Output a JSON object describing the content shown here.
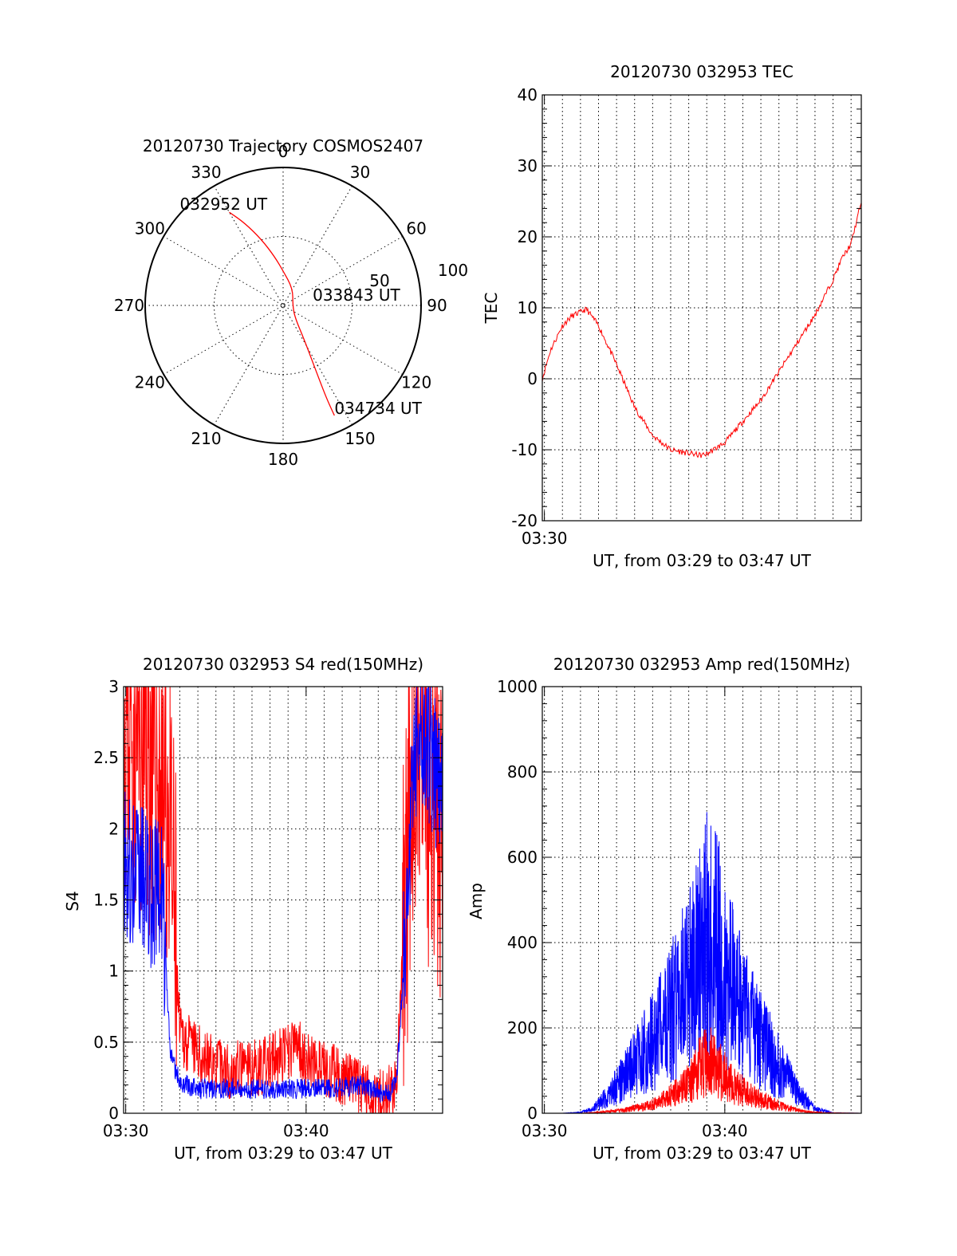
{
  "colors": {
    "red": "#ff0000",
    "blue": "#0000ff",
    "axis": "#000000"
  },
  "chart_data": [
    {
      "type": "polar",
      "id": "trajectory",
      "title": "20120730 Trajectory COSMOS2407",
      "azimuth_labels": [
        "0",
        "30",
        "60",
        "90",
        "120",
        "150",
        "180",
        "210",
        "240",
        "270",
        "300",
        "330"
      ],
      "radial_labels": [
        "50",
        "100"
      ],
      "rlim": [
        0,
        100
      ],
      "grid": true,
      "series": [
        {
          "color": "red",
          "points": [
            [
              330,
              78
            ],
            [
              335,
              66
            ],
            [
              342,
              50
            ],
            [
              350,
              36
            ],
            [
              0,
              25
            ],
            [
              30,
              14
            ],
            [
              90,
              7
            ],
            [
              135,
              12
            ],
            [
              148,
              28
            ],
            [
              152,
              44
            ],
            [
              154,
              60
            ],
            [
              155,
              76
            ],
            [
              155,
              88
            ]
          ]
        }
      ],
      "annotations": [
        {
          "text": "032952 UT",
          "az": 330,
          "r": 78
        },
        {
          "text": "033843 UT",
          "az": 90,
          "r": 7
        },
        {
          "text": "034734 UT",
          "az": 155,
          "r": 88
        }
      ]
    },
    {
      "type": "line",
      "id": "tec",
      "title": "20120730 032953 TEC",
      "ylabel": "TEC",
      "xlabel": "UT, from 03:29 to 03:47 UT",
      "xlim": [
        "03:29:53",
        "03:47:34"
      ],
      "ylim": [
        -20,
        40
      ],
      "yticks": [
        -20,
        -10,
        0,
        10,
        20,
        30,
        40
      ],
      "xtick_labels": [
        "03:30"
      ],
      "grid": true,
      "series": [
        {
          "color": "red",
          "x": [
            "03:29:53",
            "03:30:20",
            "03:31:00",
            "03:31:30",
            "03:32:05",
            "03:32:20",
            "03:33:00",
            "03:34:00",
            "03:35:00",
            "03:36:00",
            "03:37:00",
            "03:38:00",
            "03:38:40",
            "03:39:00",
            "03:39:30",
            "03:40:00",
            "03:41:00",
            "03:42:00",
            "03:43:00",
            "03:44:00",
            "03:45:00",
            "03:45:30",
            "03:46:00",
            "03:46:30",
            "03:47:00",
            "03:47:34"
          ],
          "y": [
            0,
            4,
            7.5,
            8.8,
            9.5,
            9.8,
            7.5,
            2,
            -4,
            -8,
            -10,
            -10.5,
            -10.8,
            -10.6,
            -9.8,
            -9,
            -6,
            -3,
            1,
            5,
            9,
            11.5,
            14,
            17,
            19,
            25
          ]
        }
      ]
    },
    {
      "type": "line",
      "id": "s4",
      "title": "20120730 032953 S4 red(150MHz)",
      "ylabel": "S4",
      "xlabel": "UT, from 03:29 to 03:47 UT",
      "xlim": [
        "03:29:53",
        "03:47:34"
      ],
      "ylim": [
        0,
        3
      ],
      "yticks": [
        0,
        0.5,
        1,
        1.5,
        2,
        2.5,
        3
      ],
      "ytick_labels": [
        "0",
        "0.5",
        "1",
        "1.5",
        "2",
        "2.5",
        "3"
      ],
      "xtick_labels": [
        "03:30",
        "03:40"
      ],
      "grid": true,
      "series": [
        {
          "color": "red",
          "x": [
            "03:29:53",
            "03:31:00",
            "03:32:20",
            "03:33:00",
            "03:34:00",
            "03:35:00",
            "03:36:00",
            "03:37:00",
            "03:38:00",
            "03:39:00",
            "03:39:30",
            "03:40:00",
            "03:41:00",
            "03:42:00",
            "03:43:00",
            "03:44:00",
            "03:44:30",
            "03:45:00",
            "03:45:30",
            "03:46:00",
            "03:46:30",
            "03:47:00",
            "03:47:34"
          ],
          "y": [
            2.8,
            2.6,
            2.2,
            0.55,
            0.42,
            0.33,
            0.3,
            0.32,
            0.35,
            0.42,
            0.5,
            0.38,
            0.3,
            0.26,
            0.18,
            0.12,
            0.12,
            0.2,
            1.5,
            2.6,
            2.4,
            2.1,
            2.0
          ]
        },
        {
          "color": "blue",
          "x": [
            "03:29:53",
            "03:31:00",
            "03:32:00",
            "03:32:30",
            "03:33:00",
            "03:34:00",
            "03:35:00",
            "03:36:00",
            "03:37:00",
            "03:38:00",
            "03:39:00",
            "03:40:00",
            "03:41:00",
            "03:42:00",
            "03:43:00",
            "03:44:00",
            "03:44:30",
            "03:45:00",
            "03:45:30",
            "03:46:00",
            "03:46:30",
            "03:47:00",
            "03:47:34"
          ],
          "y": [
            1.8,
            1.6,
            1.5,
            0.4,
            0.22,
            0.17,
            0.17,
            0.18,
            0.17,
            0.17,
            0.17,
            0.17,
            0.17,
            0.18,
            0.2,
            0.15,
            0.13,
            0.2,
            1.2,
            2.6,
            2.7,
            2.5,
            2.2
          ]
        }
      ]
    },
    {
      "type": "line",
      "id": "amp",
      "title": "20120730 032953 Amp red(150MHz)",
      "ylabel": "Amp",
      "xlabel": "UT, from 03:29 to 03:47 UT",
      "xlim": [
        "03:29:53",
        "03:47:34"
      ],
      "ylim": [
        0,
        1000
      ],
      "yticks": [
        0,
        200,
        400,
        600,
        800,
        1000
      ],
      "xtick_labels": [
        "03:30",
        "03:40"
      ],
      "grid": true,
      "series": [
        {
          "color": "blue",
          "x": [
            "03:29:53",
            "03:31:00",
            "03:32:00",
            "03:32:40",
            "03:33:30",
            "03:34:30",
            "03:35:30",
            "03:36:30",
            "03:37:30",
            "03:38:20",
            "03:39:00",
            "03:39:40",
            "03:40:20",
            "03:41:00",
            "03:42:00",
            "03:43:00",
            "03:44:00",
            "03:45:00",
            "03:46:00",
            "03:47:34"
          ],
          "y": [
            0,
            0,
            2,
            10,
            40,
            90,
            140,
            200,
            270,
            340,
            420,
            380,
            300,
            240,
            170,
            110,
            50,
            10,
            1,
            0
          ]
        },
        {
          "color": "red",
          "x": [
            "03:29:53",
            "03:32:00",
            "03:33:00",
            "03:34:30",
            "03:36:00",
            "03:37:00",
            "03:38:00",
            "03:38:40",
            "03:39:10",
            "03:39:40",
            "03:40:30",
            "03:41:30",
            "03:42:30",
            "03:43:30",
            "03:44:30",
            "03:45:30",
            "03:47:34"
          ],
          "y": [
            0,
            0,
            2,
            8,
            20,
            40,
            70,
            110,
            130,
            100,
            65,
            40,
            25,
            12,
            4,
            1,
            0
          ]
        }
      ]
    }
  ]
}
